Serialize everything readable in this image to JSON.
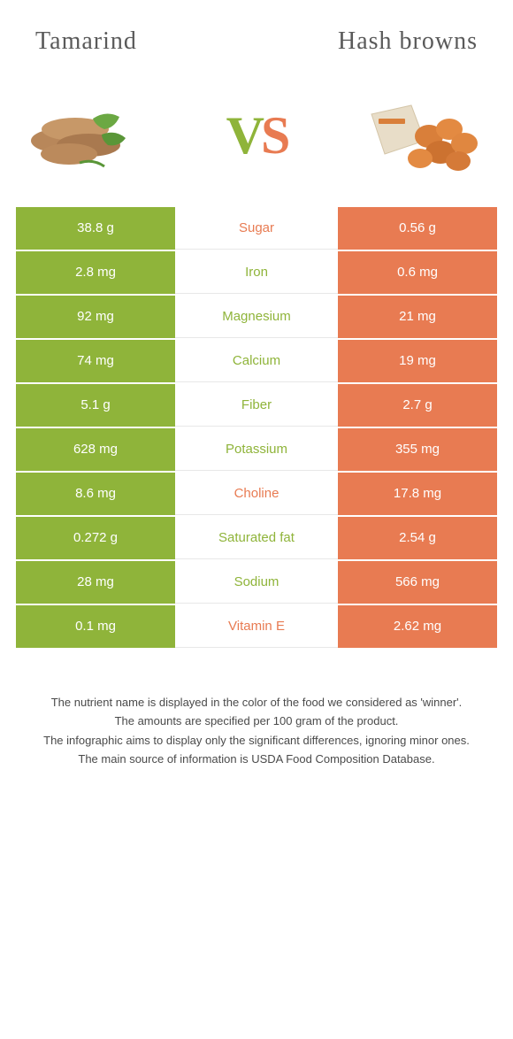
{
  "colors": {
    "left": "#8fb43a",
    "right": "#e87b52",
    "mid_text_left": "#8fb43a",
    "mid_text_right": "#e87b52"
  },
  "header": {
    "left_title": "Tamarind",
    "right_title": "Hash browns",
    "vs_v": "V",
    "vs_s": "S"
  },
  "rows": [
    {
      "left": "38.8 g",
      "mid": "Sugar",
      "right": "0.56 g",
      "winner": "right"
    },
    {
      "left": "2.8 mg",
      "mid": "Iron",
      "right": "0.6 mg",
      "winner": "left"
    },
    {
      "left": "92 mg",
      "mid": "Magnesium",
      "right": "21 mg",
      "winner": "left"
    },
    {
      "left": "74 mg",
      "mid": "Calcium",
      "right": "19 mg",
      "winner": "left"
    },
    {
      "left": "5.1 g",
      "mid": "Fiber",
      "right": "2.7 g",
      "winner": "left"
    },
    {
      "left": "628 mg",
      "mid": "Potassium",
      "right": "355 mg",
      "winner": "left"
    },
    {
      "left": "8.6 mg",
      "mid": "Choline",
      "right": "17.8 mg",
      "winner": "right"
    },
    {
      "left": "0.272 g",
      "mid": "Saturated fat",
      "right": "2.54 g",
      "winner": "left"
    },
    {
      "left": "28 mg",
      "mid": "Sodium",
      "right": "566 mg",
      "winner": "left"
    },
    {
      "left": "0.1 mg",
      "mid": "Vitamin E",
      "right": "2.62 mg",
      "winner": "right"
    }
  ],
  "footer": {
    "line1": "The nutrient name is displayed in the color of the food we considered as 'winner'.",
    "line2": "The amounts are specified per 100 gram of the product.",
    "line3": "The infographic aims to display only the significant differences, ignoring minor ones.",
    "line4": "The main source of information is USDA Food Composition Database."
  }
}
